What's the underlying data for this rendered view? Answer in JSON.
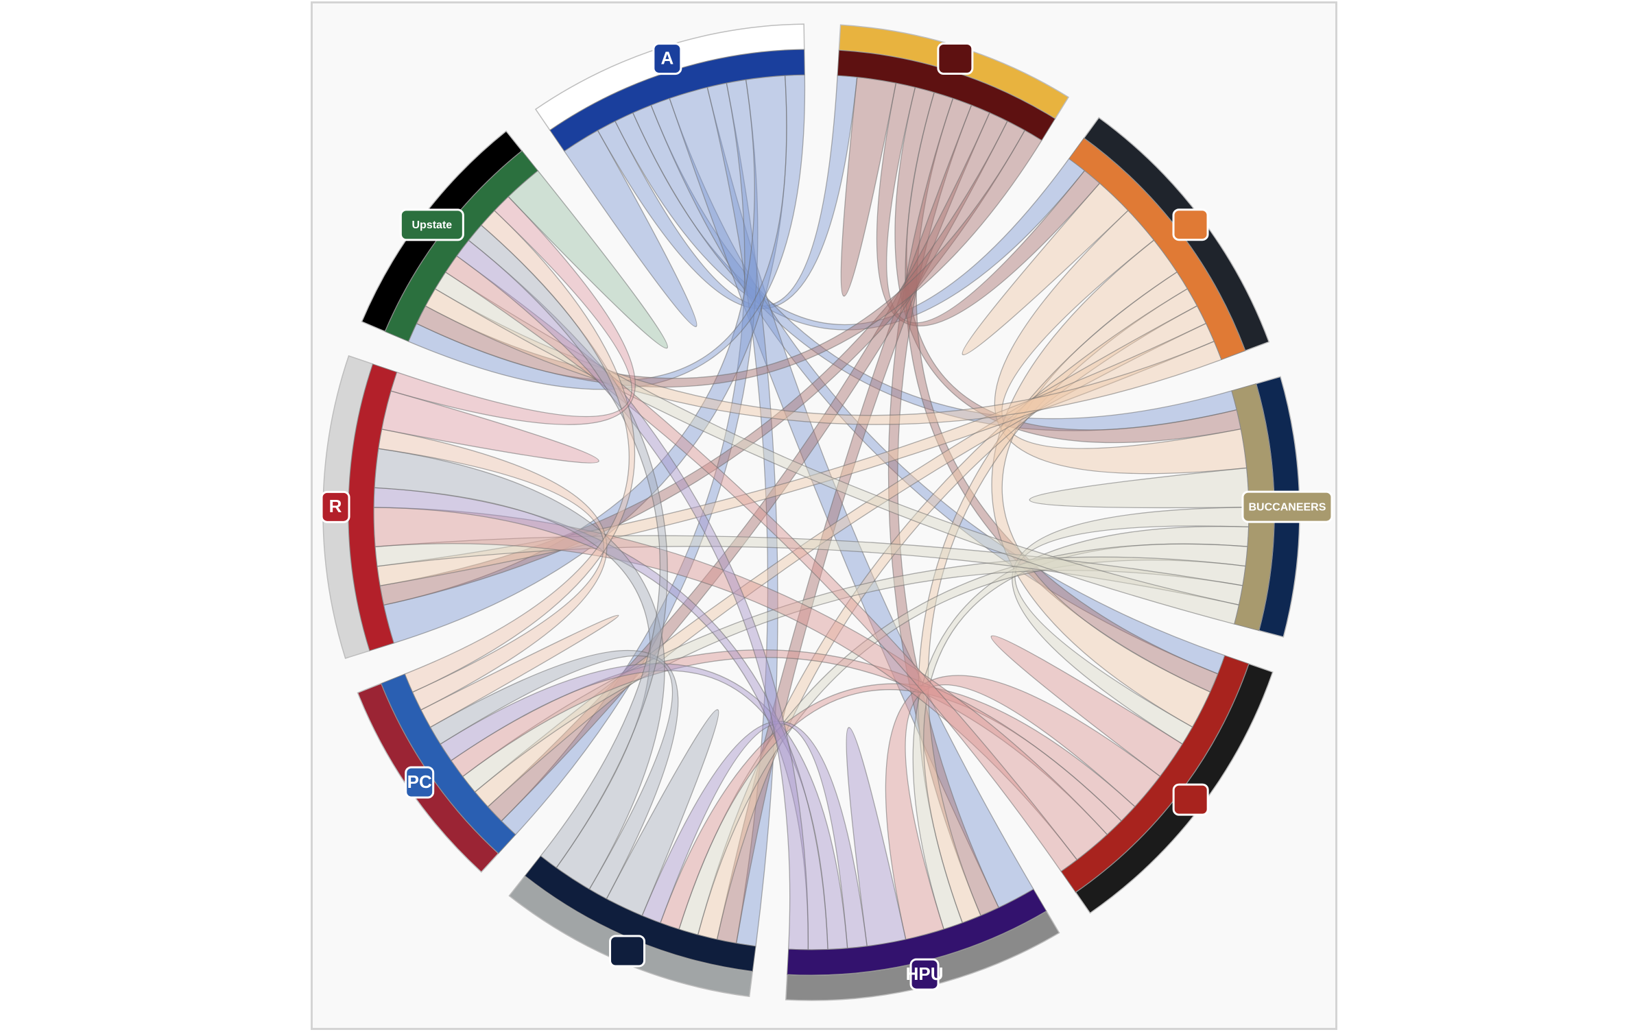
{
  "chart_data": {
    "type": "chord",
    "title": "",
    "groups": [
      {
        "id": "unc-asheville",
        "logo_text": "A",
        "outer_color": "#ffffff",
        "inner_color": "#1a3f9d",
        "ribbon_color": "#7f9ad3"
      },
      {
        "id": "winthrop",
        "logo_text": "",
        "outer_color": "#e8b33f",
        "inner_color": "#5e1111",
        "ribbon_color": "#a8706e"
      },
      {
        "id": "campbell",
        "logo_text": "",
        "outer_color": "#1f242c",
        "inner_color": "#e07a35",
        "ribbon_color": "#eec8a8"
      },
      {
        "id": "charleston-southern",
        "logo_text": "BUCCANEERS",
        "outer_color": "#0e2852",
        "inner_color": "#a89a6e",
        "ribbon_color": "#d9d6c6"
      },
      {
        "id": "gardner-webb",
        "logo_text": "",
        "outer_color": "#1b1b1b",
        "inner_color": "#a8231e",
        "ribbon_color": "#d99593"
      },
      {
        "id": "high-point",
        "logo_text": "HPU",
        "outer_color": "#8a8a8a",
        "inner_color": "#33126e",
        "ribbon_color": "#a795c9"
      },
      {
        "id": "longwood",
        "logo_text": "",
        "outer_color": "#a1a5a6",
        "inner_color": "#0f1e3d",
        "ribbon_color": "#a6adbb"
      },
      {
        "id": "presbyterian",
        "logo_text": "PC",
        "outer_color": "#9b2434",
        "inner_color": "#2a5fb2",
        "ribbon_color": "#eec3ad"
      },
      {
        "id": "radford",
        "logo_text": "R",
        "outer_color": "#d6d6d6",
        "inner_color": "#b3202a",
        "ribbon_color": "#df9ea7"
      },
      {
        "id": "usc-upstate",
        "logo_text": "Upstate",
        "outer_color": "#000000",
        "inner_color": "#2b703e",
        "ribbon_color": "#9cc2a6"
      }
    ],
    "matrix": [
      [
        2,
        1,
        1,
        1,
        1,
        2,
        1,
        1,
        2,
        1
      ],
      [
        1,
        2,
        1,
        1,
        1,
        1,
        1,
        1,
        1,
        1
      ],
      [
        1,
        1,
        2,
        2,
        2,
        1,
        1,
        1,
        1,
        1
      ],
      [
        1,
        1,
        2,
        2,
        1,
        1,
        1,
        1,
        1,
        1
      ],
      [
        1,
        1,
        2,
        1,
        2,
        2,
        1,
        1,
        2,
        1
      ],
      [
        2,
        1,
        1,
        1,
        2,
        2,
        1,
        1,
        1,
        1
      ],
      [
        1,
        1,
        1,
        1,
        1,
        1,
        2,
        1,
        2,
        1
      ],
      [
        1,
        1,
        1,
        1,
        1,
        1,
        1,
        1,
        1,
        1
      ],
      [
        2,
        1,
        1,
        1,
        2,
        1,
        2,
        1,
        2,
        1
      ],
      [
        1,
        1,
        1,
        1,
        1,
        1,
        1,
        1,
        1,
        2
      ]
    ],
    "legend": "none",
    "grid": false
  }
}
